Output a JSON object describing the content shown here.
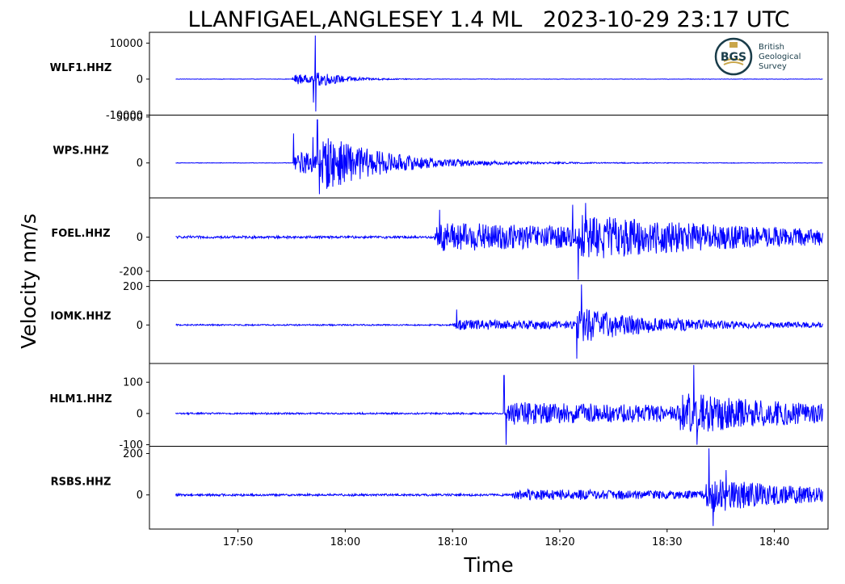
{
  "chart_data": {
    "type": "line",
    "title": "LLANFIGAEL,ANGLESEY 1.4 ML   2023-10-29 23:17 UTC",
    "ylabel": "Velocity nm/s",
    "xlabel": "Time",
    "x_ticks": [
      "17:50",
      "18:00",
      "18:10",
      "18:20",
      "18:30",
      "18:40"
    ],
    "x_range_minutes": [
      -8.25,
      55
    ],
    "trace_span_minutes": [
      -5.8,
      54.5
    ],
    "line_color": "#0000ff",
    "grid": false,
    "panels": [
      {
        "station": "WLF1.HHZ",
        "ylim": [
          -10000,
          13000
        ],
        "yticks": [
          10000,
          0,
          -10000
        ],
        "yticklabels": [
          "10000",
          "0",
          "-10000"
        ],
        "events": [
          {
            "t": 5.0,
            "amp": 2400,
            "decay": 1.6,
            "osc": 1.4
          },
          {
            "t": 7.1,
            "amp": 2200,
            "decay": 2.5,
            "osc": 1.2
          }
        ],
        "spikes": [
          {
            "t": 7.2,
            "v": 12100
          },
          {
            "t": 7.25,
            "v": -9000
          },
          {
            "t": 7.05,
            "v": -6500
          }
        ],
        "noise": 60
      },
      {
        "station": "WPS.HHZ",
        "ylim": [
          -3800,
          5200
        ],
        "yticks": [
          5000,
          0
        ],
        "yticklabels": [
          "5000",
          "0"
        ],
        "events": [
          {
            "t": 5.1,
            "amp": 1500,
            "decay": 5,
            "osc": 1.4
          },
          {
            "t": 7.5,
            "amp": 2500,
            "decay": 6,
            "osc": 1.2
          }
        ],
        "spikes": [
          {
            "t": 5.2,
            "v": 3200
          },
          {
            "t": 7.4,
            "v": 4700
          },
          {
            "t": 7.6,
            "v": -3400
          },
          {
            "t": 7.0,
            "v": 2800
          }
        ],
        "noise": 30
      },
      {
        "station": "FOEL.HHZ",
        "ylim": [
          -255,
          230
        ],
        "yticks": [
          0,
          -200
        ],
        "yticklabels": [
          "0",
          "-200"
        ],
        "events": [
          {
            "t": 18.3,
            "amp": 85,
            "decay": 30,
            "osc": 0.9
          },
          {
            "t": 31.5,
            "amp": 80,
            "decay": 14,
            "osc": 0.8
          }
        ],
        "spikes": [
          {
            "t": 31.7,
            "v": -250
          },
          {
            "t": 31.2,
            "v": 190
          },
          {
            "t": 32.4,
            "v": 200
          },
          {
            "t": 18.8,
            "v": 160
          }
        ],
        "noise": 8
      },
      {
        "station": "IOMK.HHZ",
        "ylim": [
          -200,
          230
        ],
        "yticks": [
          200,
          0
        ],
        "yticklabels": [
          "200",
          "0"
        ],
        "events": [
          {
            "t": 20.0,
            "amp": 25,
            "decay": 30,
            "osc": 0.9
          },
          {
            "t": 31.5,
            "amp": 80,
            "decay": 6,
            "osc": 0.8
          }
        ],
        "spikes": [
          {
            "t": 32.0,
            "v": 210
          },
          {
            "t": 31.6,
            "v": -175
          },
          {
            "t": 20.4,
            "v": 80
          }
        ],
        "noise": 4
      },
      {
        "station": "HLM1.HHZ",
        "ylim": [
          -105,
          160
        ],
        "yticks": [
          100,
          0,
          -100
        ],
        "yticklabels": [
          "100",
          "0",
          "-100"
        ],
        "events": [
          {
            "t": 24.9,
            "amp": 35,
            "decay": 40,
            "osc": 0.9
          },
          {
            "t": 41.0,
            "amp": 45,
            "decay": 10,
            "osc": 0.8
          }
        ],
        "spikes": [
          {
            "t": 24.8,
            "v": 122
          },
          {
            "t": 25.0,
            "v": -100
          },
          {
            "t": 42.5,
            "v": 155
          },
          {
            "t": 42.8,
            "v": -100
          }
        ],
        "noise": 3
      },
      {
        "station": "RSBS.HHZ",
        "ylim": [
          -165,
          235
        ],
        "yticks": [
          200,
          0
        ],
        "yticklabels": [
          "200",
          "0"
        ],
        "events": [
          {
            "t": 25.5,
            "amp": 22,
            "decay": 40,
            "osc": 0.9
          },
          {
            "t": 43.5,
            "amp": 75,
            "decay": 8,
            "osc": 0.8
          }
        ],
        "spikes": [
          {
            "t": 43.9,
            "v": 225
          },
          {
            "t": 44.3,
            "v": -150
          },
          {
            "t": 45.5,
            "v": 120
          }
        ],
        "noise": 6
      }
    ]
  },
  "logo": {
    "mark": "BGS",
    "line1": "British",
    "line2": "Geological",
    "line3": "Survey"
  }
}
